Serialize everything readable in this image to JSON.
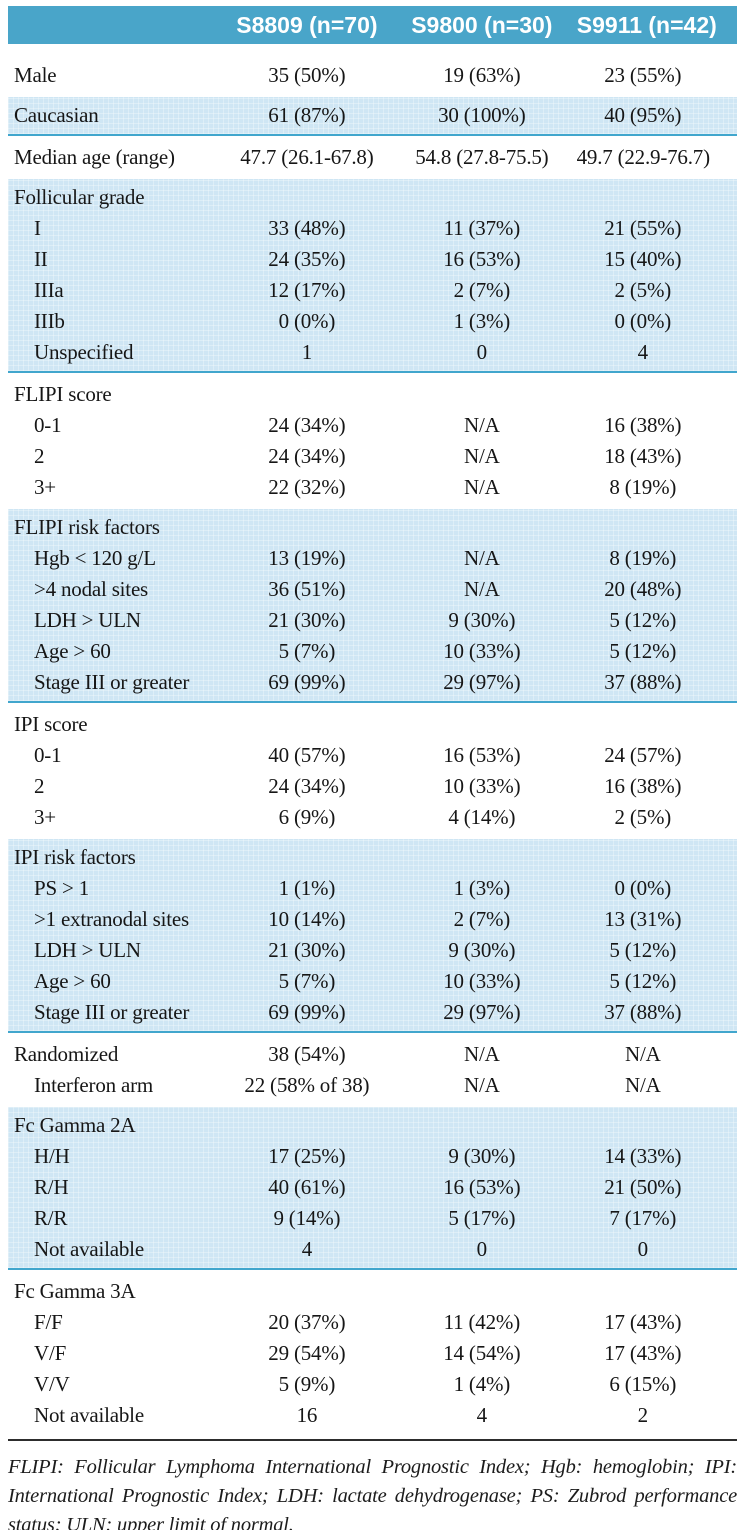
{
  "header": {
    "columns": [
      "S8809 (n=70)",
      "S9800 (n=30)",
      "S9911 (n=42)"
    ]
  },
  "sections": [
    {
      "tone": "white",
      "rows": [
        {
          "label": "Male",
          "indent": 0,
          "values": [
            "35 (50%)",
            "19 (63%)",
            "23 (55%)"
          ]
        }
      ]
    },
    {
      "tone": "blue",
      "rows": [
        {
          "label": "Caucasian",
          "indent": 0,
          "values": [
            "61 (87%)",
            "30 (100%)",
            "40 (95%)"
          ]
        }
      ]
    },
    {
      "tone": "white",
      "rows": [
        {
          "label": "Median age (range)",
          "indent": 0,
          "values": [
            "47.7 (26.1-67.8)",
            "54.8 (27.8-75.5)",
            "49.7 (22.9-76.7)"
          ]
        }
      ]
    },
    {
      "tone": "blue",
      "rows": [
        {
          "label": "Follicular grade",
          "indent": 0,
          "values": [
            "",
            "",
            ""
          ]
        },
        {
          "label": "I",
          "indent": 1,
          "values": [
            "33 (48%)",
            "11 (37%)",
            "21 (55%)"
          ]
        },
        {
          "label": "II",
          "indent": 1,
          "values": [
            "24 (35%)",
            "16 (53%)",
            "15 (40%)"
          ]
        },
        {
          "label": "IIIa",
          "indent": 1,
          "values": [
            "12 (17%)",
            "2 (7%)",
            "2 (5%)"
          ]
        },
        {
          "label": "IIIb",
          "indent": 1,
          "values": [
            "0 (0%)",
            "1 (3%)",
            "0 (0%)"
          ]
        },
        {
          "label": "Unspecified",
          "indent": 1,
          "values": [
            "1",
            "0",
            "4"
          ]
        }
      ]
    },
    {
      "tone": "white",
      "rows": [
        {
          "label": "FLIPI score",
          "indent": 0,
          "values": [
            "",
            "",
            ""
          ]
        },
        {
          "label": "0-1",
          "indent": 1,
          "values": [
            "24 (34%)",
            "N/A",
            "16 (38%)"
          ]
        },
        {
          "label": "2",
          "indent": 1,
          "values": [
            "24 (34%)",
            "N/A",
            "18 (43%)"
          ]
        },
        {
          "label": "3+",
          "indent": 1,
          "values": [
            "22 (32%)",
            "N/A",
            "8 (19%)"
          ]
        }
      ]
    },
    {
      "tone": "blue",
      "rows": [
        {
          "label": "FLIPI risk factors",
          "indent": 0,
          "values": [
            "",
            "",
            ""
          ]
        },
        {
          "label": "Hgb < 120 g/L",
          "indent": 1,
          "values": [
            "13 (19%)",
            "N/A",
            "8 (19%)"
          ]
        },
        {
          "label": ">4 nodal sites",
          "indent": 1,
          "values": [
            "36 (51%)",
            "N/A",
            "20 (48%)"
          ]
        },
        {
          "label": "LDH > ULN",
          "indent": 1,
          "values": [
            "21 (30%)",
            "9 (30%)",
            "5 (12%)"
          ]
        },
        {
          "label": "Age > 60",
          "indent": 1,
          "values": [
            "5 (7%)",
            "10 (33%)",
            "5 (12%)"
          ]
        },
        {
          "label": "Stage III or greater",
          "indent": 1,
          "values": [
            "69 (99%)",
            "29 (97%)",
            "37 (88%)"
          ]
        }
      ]
    },
    {
      "tone": "white",
      "rows": [
        {
          "label": "IPI score",
          "indent": 0,
          "values": [
            "",
            "",
            ""
          ]
        },
        {
          "label": "0-1",
          "indent": 1,
          "values": [
            "40 (57%)",
            "16 (53%)",
            "24 (57%)"
          ]
        },
        {
          "label": "2",
          "indent": 1,
          "values": [
            "24 (34%)",
            "10 (33%)",
            "16 (38%)"
          ]
        },
        {
          "label": "3+",
          "indent": 1,
          "values": [
            "6 (9%)",
            "4 (14%)",
            "2 (5%)"
          ]
        }
      ]
    },
    {
      "tone": "blue",
      "rows": [
        {
          "label": "IPI risk factors",
          "indent": 0,
          "values": [
            "",
            "",
            ""
          ]
        },
        {
          "label": "PS > 1",
          "indent": 1,
          "values": [
            "1 (1%)",
            "1 (3%)",
            "0 (0%)"
          ]
        },
        {
          "label": ">1 extranodal sites",
          "indent": 1,
          "values": [
            "10 (14%)",
            "2 (7%)",
            "13 (31%)"
          ]
        },
        {
          "label": "LDH > ULN",
          "indent": 1,
          "values": [
            "21 (30%)",
            "9 (30%)",
            "5 (12%)"
          ]
        },
        {
          "label": "Age > 60",
          "indent": 1,
          "values": [
            "5 (7%)",
            "10 (33%)",
            "5 (12%)"
          ]
        },
        {
          "label": "Stage III or greater",
          "indent": 1,
          "values": [
            "69 (99%)",
            "29 (97%)",
            "37 (88%)"
          ]
        }
      ]
    },
    {
      "tone": "white",
      "rows": [
        {
          "label": "Randomized",
          "indent": 0,
          "values": [
            "38 (54%)",
            "N/A",
            "N/A"
          ]
        },
        {
          "label": "Interferon arm",
          "indent": 1,
          "values": [
            "22 (58% of 38)",
            "N/A",
            "N/A"
          ]
        }
      ]
    },
    {
      "tone": "blue",
      "rows": [
        {
          "label": "Fc Gamma 2A",
          "indent": 0,
          "values": [
            "",
            "",
            ""
          ]
        },
        {
          "label": "H/H",
          "indent": 1,
          "values": [
            "17 (25%)",
            "9 (30%)",
            "14 (33%)"
          ]
        },
        {
          "label": "R/H",
          "indent": 1,
          "values": [
            "40 (61%)",
            "16 (53%)",
            "21 (50%)"
          ]
        },
        {
          "label": "R/R",
          "indent": 1,
          "values": [
            "9 (14%)",
            "5 (17%)",
            "7 (17%)"
          ]
        },
        {
          "label": "Not available",
          "indent": 1,
          "values": [
            "4",
            "0",
            "0"
          ]
        }
      ]
    },
    {
      "tone": "white",
      "rows": [
        {
          "label": "Fc Gamma 3A",
          "indent": 0,
          "values": [
            "",
            "",
            ""
          ]
        },
        {
          "label": "F/F",
          "indent": 1,
          "values": [
            "20 (37%)",
            "11 (42%)",
            "17 (43%)"
          ]
        },
        {
          "label": "V/F",
          "indent": 1,
          "values": [
            "29 (54%)",
            "14 (54%)",
            "17 (43%)"
          ]
        },
        {
          "label": "V/V",
          "indent": 1,
          "values": [
            "5 (9%)",
            "1 (4%)",
            "6 (15%)"
          ]
        },
        {
          "label": "Not available",
          "indent": 1,
          "values": [
            "16",
            "4",
            "2"
          ]
        }
      ]
    }
  ],
  "footnote": "FLIPI: Follicular Lymphoma International Prognostic Index; Hgb: hemoglobin; IPI: International Prognostic Index; LDH: lactate dehydrogenase; PS: Zubrod performance status; ULN: upper limit of normal.",
  "colors": {
    "header_bar": "#49a5c9",
    "band_blue": "#cfe6f4",
    "band_border": "#41a6cd",
    "text": "#161616",
    "bottom_rule": "#2d2d2d"
  }
}
